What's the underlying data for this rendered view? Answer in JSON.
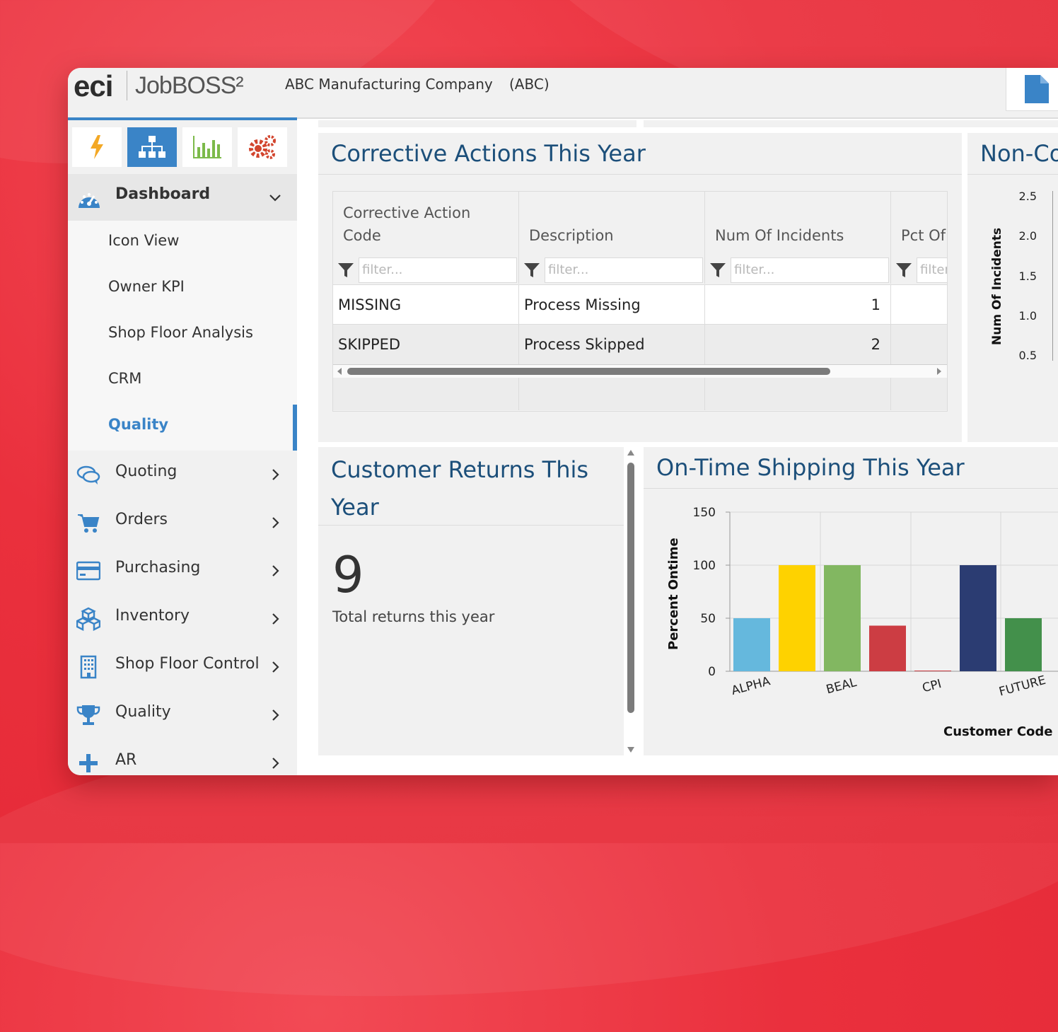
{
  "app": {
    "brand_eci": "eci",
    "brand_product": "JobBOSS²",
    "company_name": "ABC Manufacturing Company",
    "company_code": "(ABC)"
  },
  "sidebar": {
    "toolbar_icons": [
      "lightning-icon",
      "org-chart-icon",
      "bar-chart-icon",
      "gears-icon"
    ],
    "dashboard": {
      "label": "Dashboard",
      "items": [
        {
          "label": "Icon View"
        },
        {
          "label": "Owner KPI"
        },
        {
          "label": "Shop Floor Analysis"
        },
        {
          "label": "CRM"
        },
        {
          "label": "Quality",
          "active": true
        }
      ]
    },
    "items": [
      {
        "label": "Quoting",
        "icon": "chat-bubbles-icon"
      },
      {
        "label": "Orders",
        "icon": "cart-icon"
      },
      {
        "label": "Purchasing",
        "icon": "credit-card-icon"
      },
      {
        "label": "Inventory",
        "icon": "boxes-icon"
      },
      {
        "label": "Shop Floor Control",
        "icon": "building-icon"
      },
      {
        "label": "Quality",
        "icon": "trophy-icon"
      },
      {
        "label": "AR",
        "icon": "plus-icon"
      }
    ]
  },
  "corrective": {
    "title": "Corrective Actions This Year",
    "columns": [
      "Corrective Action Code",
      "Description",
      "Num Of Incidents",
      "Pct Of"
    ],
    "filter_placeholder": "filter...",
    "rows": [
      {
        "code": "MISSING",
        "description": "Process Missing",
        "incidents": "1"
      },
      {
        "code": "SKIPPED",
        "description": "Process Skipped",
        "incidents": "2"
      }
    ]
  },
  "nonconf": {
    "title": "Non-Co",
    "ylabel": "Num Of Incidents",
    "ticks": [
      "2.5",
      "2.0",
      "1.5",
      "1.0",
      "0.5"
    ]
  },
  "returns": {
    "title": "Customer Returns This Year",
    "value": "9",
    "caption": "Total returns this year"
  },
  "shipping": {
    "title": "On-Time Shipping This Year"
  },
  "chart_data": {
    "type": "bar",
    "ylabel": "Percent Ontime",
    "xlabel": "Customer Code",
    "ylim": [
      0,
      150
    ],
    "yticks": [
      0,
      50,
      100,
      150
    ],
    "grid": true,
    "categories_labeled": [
      "ALPHA",
      "BEAL",
      "CPI",
      "FUTURE"
    ],
    "bars": [
      {
        "value": 50,
        "color": "#65b8dd"
      },
      {
        "value": 100,
        "color": "#fed200"
      },
      {
        "value": 100,
        "color": "#82b761"
      },
      {
        "value": 43,
        "color": "#cc3d43"
      },
      {
        "value": 0,
        "color": "#cc3d43"
      },
      {
        "value": 100,
        "color": "#2b3c72"
      },
      {
        "value": 50,
        "color": "#43904b"
      }
    ]
  }
}
